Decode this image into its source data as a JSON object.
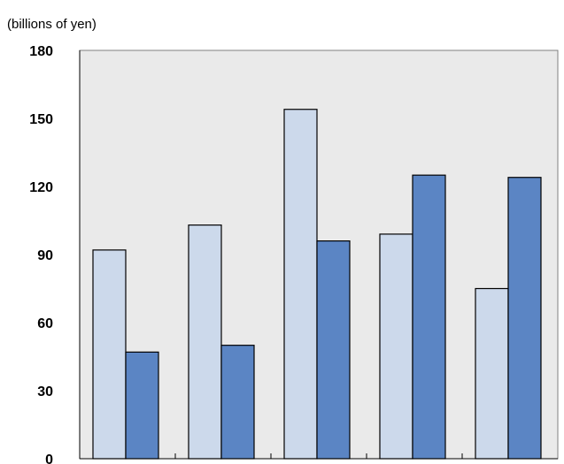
{
  "chart_data": {
    "type": "bar",
    "ylabel": "(billions of yen)",
    "ylim": [
      0,
      180
    ],
    "yticks": [
      0,
      30,
      60,
      90,
      120,
      150,
      180
    ],
    "grid": false,
    "categories": [
      "",
      "",
      "",
      "",
      ""
    ],
    "series": [
      {
        "values": [
          92,
          103,
          154,
          99,
          75
        ],
        "color": "#ccd9eb"
      },
      {
        "values": [
          47,
          50,
          96,
          125,
          124
        ],
        "color": "#5b85c4"
      }
    ],
    "plot_background": "#eaeaea"
  }
}
